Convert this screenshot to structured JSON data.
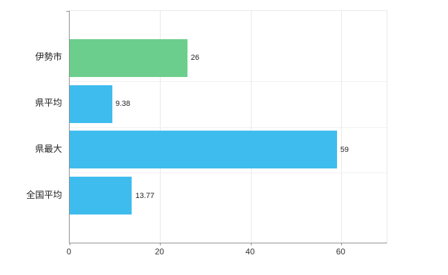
{
  "chart_data": {
    "type": "bar",
    "orientation": "horizontal",
    "title": "",
    "categories": [
      "伊勢市",
      "県平均",
      "県最大",
      "全国平均"
    ],
    "values": [
      26,
      9.38,
      59,
      13.77
    ],
    "value_labels": [
      "26",
      "9.38",
      "59",
      "13.77"
    ],
    "bar_colors": [
      "#6cce8c",
      "#3fbcee",
      "#3fbcee",
      "#3fbcee"
    ],
    "xlim": [
      0,
      70
    ],
    "x_ticks": [
      0,
      20,
      40,
      60
    ],
    "x_tick_labels": [
      "0",
      "20",
      "40",
      "60"
    ],
    "grid": true,
    "legend": "none"
  },
  "colors": {
    "background": "#ffffff",
    "axis": "#8f8f8f",
    "gridline": "#e8e8e8",
    "text": "#222222",
    "green_bar": "#6cce8c",
    "blue_bar": "#3fbcee"
  }
}
